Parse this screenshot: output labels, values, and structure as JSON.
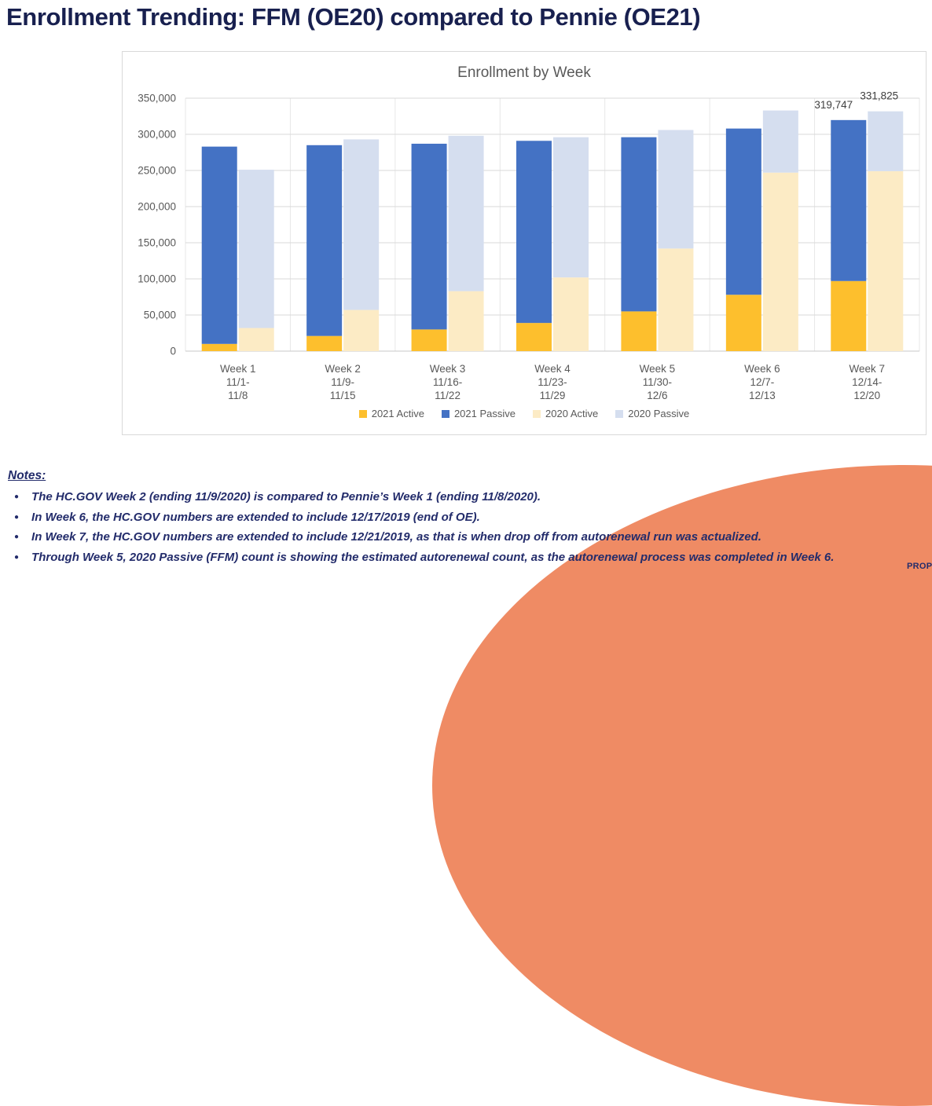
{
  "theme": {
    "title_navy": "#18204F",
    "notes_navy": "#232C6B",
    "salmon": "#EF8B64",
    "axis_text_gray": "#595959",
    "grid_gray": "#D9D9D9",
    "card_border": "#D9D9D9",
    "data_label_gray": "#404040"
  },
  "header": {
    "title": "Enrollment Trending: FFM (OE20) compared to Pennie (OE21)"
  },
  "chart_data": {
    "type": "bar",
    "stacked": true,
    "title": "Enrollment by Week",
    "categories": [
      "Week 1",
      "Week 2",
      "Week 3",
      "Week 4",
      "Week 5",
      "Week 6",
      "Week 7"
    ],
    "category_labels": [
      [
        "Week 1",
        "11/1-",
        "11/8"
      ],
      [
        "Week 2",
        "11/9-",
        "11/15"
      ],
      [
        "Week 3",
        "11/16-",
        "11/22"
      ],
      [
        "Week 4",
        "11/23-",
        "11/29"
      ],
      [
        "Week 5",
        "11/30-",
        "12/6"
      ],
      [
        "Week 6",
        "12/7-",
        "12/13"
      ],
      [
        "Week 7",
        "12/14-",
        "12/20"
      ]
    ],
    "series": [
      {
        "name": "2021 Active",
        "group": "2021",
        "color": "#FDBF2D",
        "values": [
          10000,
          21000,
          30000,
          39000,
          55000,
          78000,
          97000
        ]
      },
      {
        "name": "2021 Passive",
        "group": "2021",
        "color": "#4472C4",
        "values": [
          273000,
          264000,
          257000,
          252000,
          241000,
          230000,
          222747
        ]
      },
      {
        "name": "2020 Active",
        "group": "2020",
        "color": "#FCEBC5",
        "values": [
          32000,
          57000,
          83000,
          102000,
          142000,
          247000,
          249000
        ]
      },
      {
        "name": "2020 Passive",
        "group": "2020",
        "color": "#D5DEEF",
        "values": [
          219000,
          236000,
          215000,
          194000,
          164000,
          86000,
          82825
        ]
      }
    ],
    "group_totals": {
      "2021": [
        283000,
        285000,
        287000,
        291000,
        296000,
        308000,
        319747
      ],
      "2020": [
        251000,
        293000,
        298000,
        296000,
        306000,
        333000,
        331825
      ]
    },
    "data_labels": [
      {
        "category_index": 6,
        "group": "2021",
        "text": "319,747"
      },
      {
        "category_index": 6,
        "group": "2020",
        "text": "331,825"
      }
    ],
    "ylim": [
      0,
      350000
    ],
    "ytick_step": 50000,
    "grid": true,
    "legend_position": "bottom"
  },
  "notes": {
    "heading": "Notes:",
    "bullet": "●",
    "items": [
      "The HC.GOV Week 2 (ending 11/9/2020) is compared to Pennie’s Week 1 (ending 11/8/2020).",
      "In Week 6, the HC.GOV numbers are extended to include 12/17/2019 (end of OE).",
      "In Week 7, the HC.GOV numbers are extended to include 12/21/2019, as that is when drop off from autorenewal run was actualized.",
      "Through Week 5, 2020 Passive (FFM) count is showing the estimated autorenewal count, as the autorenewal process was completed in Week 6."
    ]
  },
  "footer": {
    "proprietary": "PROP"
  }
}
